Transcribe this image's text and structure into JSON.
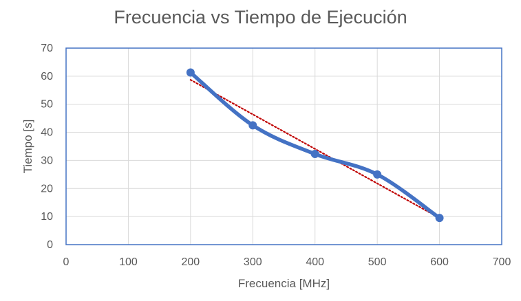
{
  "chart_data": {
    "type": "scatter",
    "title": "Frecuencia vs Tiempo de Ejecución",
    "xlabel": "Frecuencia [MHz]",
    "ylabel": "Tiempo [s]",
    "xlim": [
      0,
      700
    ],
    "ylim": [
      0,
      70
    ],
    "xticks": [
      0,
      100,
      200,
      300,
      400,
      500,
      600,
      700
    ],
    "yticks": [
      0,
      10,
      20,
      30,
      40,
      50,
      60,
      70
    ],
    "grid": true,
    "legend": "none",
    "series": [
      {
        "x": [
          200,
          300,
          400,
          500,
          600
        ],
        "y": [
          61.3,
          42.5,
          32.3,
          25.0,
          9.5
        ],
        "color": "#4472C4",
        "line": "smooth",
        "markers": true
      }
    ],
    "trendline": {
      "type": "linear",
      "color": "#C00000",
      "style": "dotted",
      "x": [
        200,
        600
      ],
      "y": [
        58.7,
        9.5
      ]
    }
  }
}
